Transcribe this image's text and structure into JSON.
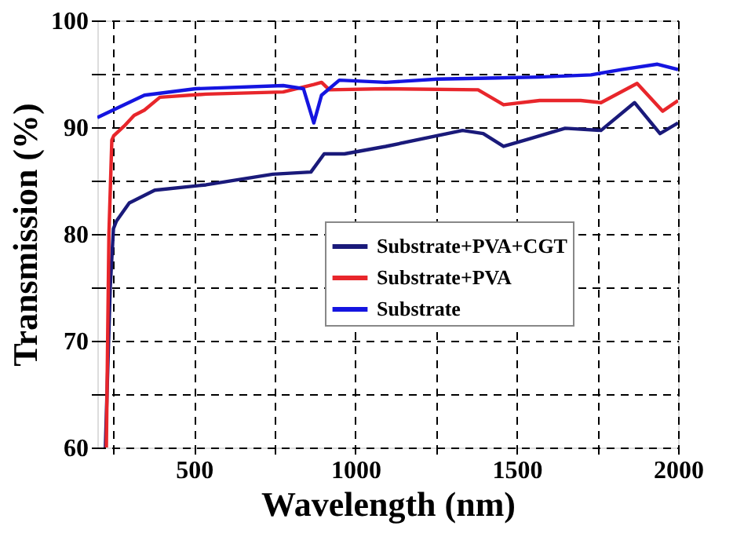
{
  "chart_data": {
    "type": "line",
    "xlabel": "Wavelength (nm)",
    "ylabel": "Transmission (%)",
    "xlim": [
      200,
      2000
    ],
    "ylim": [
      60,
      100
    ],
    "xticks": [
      {
        "value": 250,
        "label": null
      },
      500,
      {
        "value": 750,
        "label": null
      },
      1000,
      {
        "value": 1250,
        "label": null
      },
      1500,
      {
        "value": 1750,
        "label": null
      },
      2000
    ],
    "yticks": [
      60,
      {
        "value": 65,
        "label": null
      },
      70,
      {
        "value": 75,
        "label": null
      },
      80,
      {
        "value": 85,
        "label": null
      },
      90,
      {
        "value": 95,
        "label": null
      },
      100
    ],
    "grid": true,
    "legend": "right",
    "line_style": "solid",
    "marker": "none",
    "series": [
      {
        "name": "Substrate+PVA+CGT",
        "color": "#1a1a7a",
        "x": [
          225,
          240,
          250,
          259,
          299,
          378,
          537,
          744,
          862,
          903,
          966,
          1094,
          1332,
          1396,
          1459,
          1539,
          1650,
          1761,
          1865,
          1944,
          2000
        ],
        "values": [
          60,
          75,
          80.5,
          81.2,
          82.9,
          84.1,
          84.6,
          85.6,
          85.8,
          87.5,
          87.5,
          88.2,
          89.7,
          89.4,
          88.2,
          88.9,
          89.9,
          89.7,
          92.3,
          89.4,
          90.4
        ]
      },
      {
        "name": "Substrate+PVA",
        "color": "#e8262b",
        "x": [
          228,
          236,
          245,
          251,
          283,
          314,
          346,
          394,
          537,
          776,
          871,
          895,
          919,
          1094,
          1380,
          1459,
          1571,
          1698,
          1761,
          1873,
          1952,
          2000
        ],
        "values": [
          60,
          80,
          88.8,
          89.2,
          90.1,
          91.1,
          91.6,
          92.8,
          93.1,
          93.3,
          94.0,
          94.2,
          93.5,
          93.6,
          93.5,
          92.1,
          92.5,
          92.5,
          92.3,
          94.1,
          91.5,
          92.5
        ]
      },
      {
        "name": "Substrate",
        "color": "#1515e0",
        "x": [
          200,
          283,
          346,
          505,
          776,
          839,
          871,
          895,
          950,
          1094,
          1253,
          1412,
          1571,
          1730,
          1825,
          1936,
          2000
        ],
        "values": [
          90.9,
          92.1,
          93.0,
          93.6,
          93.9,
          93.6,
          90.4,
          93.0,
          94.4,
          94.2,
          94.5,
          94.6,
          94.7,
          94.9,
          95.4,
          95.9,
          95.4
        ]
      }
    ]
  }
}
